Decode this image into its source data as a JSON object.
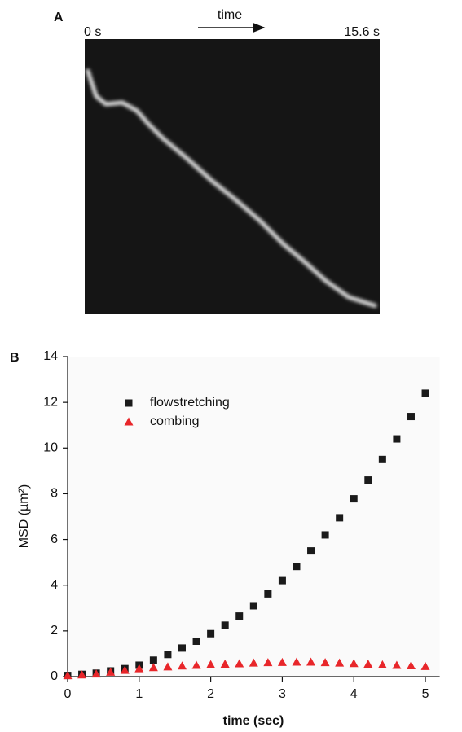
{
  "panel_a": {
    "label": "A",
    "start": "0 s",
    "arrow_label": "time",
    "end": "15.6 s"
  },
  "chart_data": {
    "type": "scatter",
    "panel_label": "B",
    "x_label": "time (sec)",
    "y_label": "MSD (µm²)",
    "x": [
      0,
      0.2,
      0.4,
      0.6,
      0.8,
      1.0,
      1.2,
      1.4,
      1.6,
      1.8,
      2.0,
      2.2,
      2.4,
      2.6,
      2.8,
      3.0,
      3.2,
      3.4,
      3.6,
      3.8,
      4.0,
      4.2,
      4.4,
      4.6,
      4.8,
      5.0
    ],
    "series": [
      {
        "name": "flowstretching",
        "color": "#1a1a1a",
        "marker": "square",
        "values": [
          0.05,
          0.1,
          0.15,
          0.25,
          0.35,
          0.5,
          0.72,
          0.97,
          1.25,
          1.55,
          1.88,
          2.25,
          2.65,
          3.1,
          3.62,
          4.2,
          4.82,
          5.5,
          6.2,
          6.95,
          7.78,
          8.6,
          9.5,
          10.4,
          11.38,
          12.4
        ]
      },
      {
        "name": "combing",
        "color": "#e8262a",
        "marker": "triangle",
        "values": [
          0.05,
          0.08,
          0.12,
          0.2,
          0.28,
          0.35,
          0.4,
          0.43,
          0.47,
          0.5,
          0.53,
          0.55,
          0.57,
          0.6,
          0.62,
          0.63,
          0.64,
          0.64,
          0.62,
          0.6,
          0.58,
          0.55,
          0.52,
          0.5,
          0.48,
          0.45
        ]
      }
    ],
    "xlim": [
      0,
      5.2
    ],
    "xticks": [
      0,
      1,
      2,
      3,
      4,
      5
    ],
    "ylim": [
      0,
      14
    ],
    "yticks": [
      0,
      2,
      4,
      6,
      8,
      10,
      12,
      14
    ],
    "legend": "upper-left"
  }
}
